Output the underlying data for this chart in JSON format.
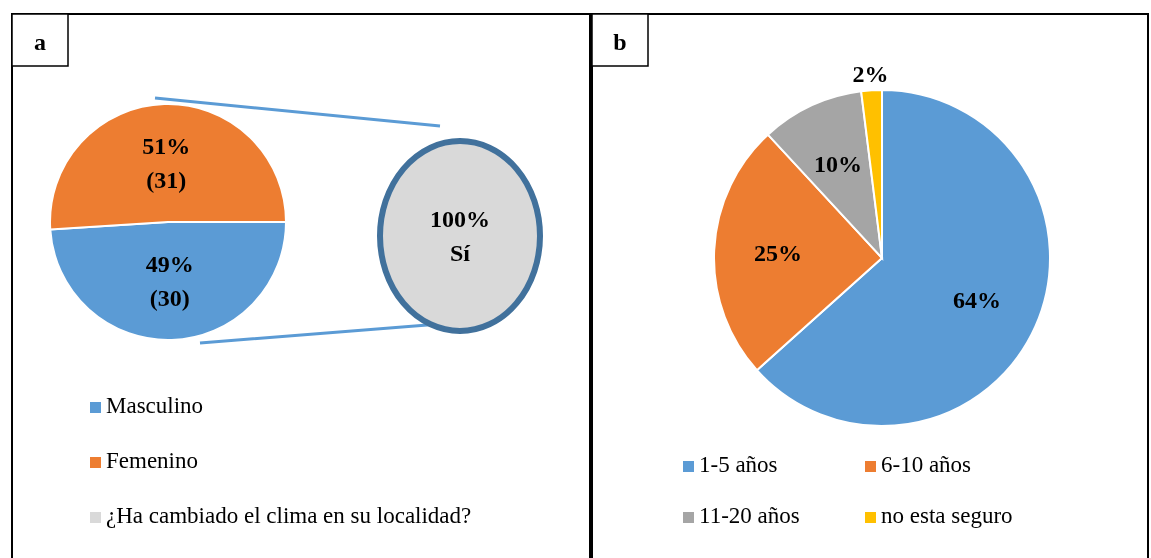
{
  "chart_data": [
    {
      "type": "pie",
      "title": "a",
      "categories": [
        "Masculino",
        "Femenino"
      ],
      "values": [
        49,
        51
      ],
      "colors": [
        "#5b9bd5",
        "#ed7d31"
      ],
      "value_labels": [
        "49%\n(30)",
        "51%\n(31)"
      ],
      "legend": "bottom"
    },
    {
      "type": "pie",
      "categories": [
        "¿Ha cambiado el clima en su localidad?"
      ],
      "values": [
        100
      ],
      "colors": [
        "#d9d9d9"
      ],
      "value_labels": [
        "100%\nSí"
      ],
      "legend": "bottom"
    },
    {
      "type": "pie",
      "title": "b",
      "categories": [
        "1-5 años",
        "6-10 años",
        "11-20 años",
        "no esta seguro"
      ],
      "values": [
        64,
        25,
        10,
        2
      ],
      "colors": [
        "#5b9bd5",
        "#ed7d31",
        "#a5a5a5",
        "#ffc000"
      ],
      "value_labels": [
        "64%",
        "25%",
        "10%",
        "2%"
      ],
      "legend": "bottom"
    }
  ]
}
